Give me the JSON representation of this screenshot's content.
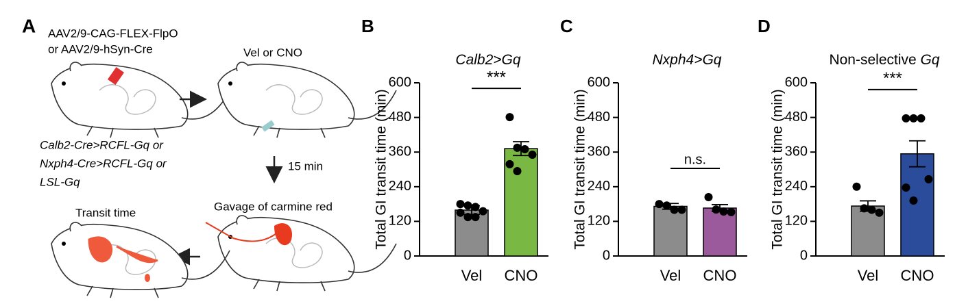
{
  "diagram": {
    "panel": "A",
    "virus_1": "AAV2/9-CAG-FLEX-FlpO",
    "virus_2": "or AAV2/9-hSyn-Cre",
    "injection": "Vel or CNO",
    "line_1": "Calb2-Cre>RCFL-Gq or",
    "line_2": "Nxph4-Cre>RCFL-Gq or",
    "line_3": "LSL-Gq",
    "delay": "15 min",
    "gavage": "Gavage of carmine red",
    "readout": "Transit time"
  },
  "chart_data": [
    {
      "type": "bar",
      "panel": "B",
      "title_italic": "Calb2>Gq",
      "ylabel": "Total GI transit time (min)",
      "categories": [
        "Vel",
        "CNO"
      ],
      "values": [
        159,
        372
      ],
      "errors": [
        15,
        24
      ],
      "points": [
        [
          180,
          175,
          170,
          155,
          150,
          135,
          135
        ],
        [
          481,
          375,
          370,
          351,
          318,
          294
        ]
      ],
      "colors": [
        "#8c8c8c",
        "#79b843"
      ],
      "ylim": [
        0,
        600
      ],
      "yticks": [
        0,
        120,
        240,
        360,
        480,
        600
      ],
      "annotation": "***"
    },
    {
      "type": "bar",
      "panel": "C",
      "title_italic": "Nxph4>Gq",
      "ylabel": "Total GI transit time (min)",
      "categories": [
        "Vel",
        "CNO"
      ],
      "values": [
        172,
        166
      ],
      "errors": [
        10,
        12
      ],
      "points": [
        [
          180,
          175,
          160,
          160
        ],
        [
          204,
          161,
          154,
          152
        ]
      ],
      "colors": [
        "#8c8c8c",
        "#9b5a9b"
      ],
      "ylim": [
        0,
        600
      ],
      "yticks": [
        0,
        120,
        240,
        360,
        480,
        600
      ],
      "annotation": "n.s."
    },
    {
      "type": "bar",
      "panel": "D",
      "title": "Non-selective",
      "title_italic": "Gq",
      "ylabel": "Total GI transit time (min)",
      "categories": [
        "Vel",
        "CNO"
      ],
      "values": [
        173,
        354
      ],
      "errors": [
        18,
        45
      ],
      "points": [
        [
          240,
          165,
          160,
          150
        ],
        [
          477,
          477,
          477,
          266,
          237,
          192
        ]
      ],
      "colors": [
        "#8c8c8c",
        "#2b4c9b"
      ],
      "ylim": [
        0,
        600
      ],
      "yticks": [
        0,
        120,
        240,
        360,
        480,
        600
      ],
      "annotation": "***"
    }
  ]
}
